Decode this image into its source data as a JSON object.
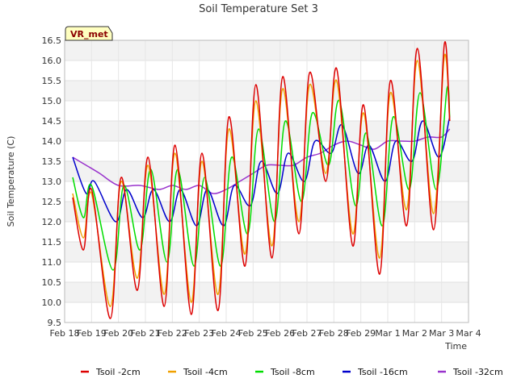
{
  "chart_data": {
    "type": "line",
    "title": "Soil Temperature Set 3",
    "xlabel": "Time",
    "ylabel": "Soil Temperature (C)",
    "badge": "VR_met",
    "x_unit": "day index (0 = Feb 18)",
    "xlim": [
      0,
      15
    ],
    "ylim": [
      9.5,
      16.5
    ],
    "y_ticks": [
      9.5,
      10.0,
      10.5,
      11.0,
      11.5,
      12.0,
      12.5,
      13.0,
      13.5,
      14.0,
      14.5,
      15.0,
      15.5,
      16.0,
      16.5
    ],
    "x_ticks": [
      {
        "value": 0,
        "label": "Feb 18"
      },
      {
        "value": 1,
        "label": "Feb 19"
      },
      {
        "value": 2,
        "label": "Feb 20"
      },
      {
        "value": 3,
        "label": "Feb 21"
      },
      {
        "value": 4,
        "label": "Feb 22"
      },
      {
        "value": 5,
        "label": "Feb 23"
      },
      {
        "value": 6,
        "label": "Feb 24"
      },
      {
        "value": 7,
        "label": "Feb 25"
      },
      {
        "value": 8,
        "label": "Feb 26"
      },
      {
        "value": 9,
        "label": "Feb 27"
      },
      {
        "value": 10,
        "label": "Feb 28"
      },
      {
        "value": 11,
        "label": "Feb 29"
      },
      {
        "value": 12,
        "label": "Mar 1"
      },
      {
        "value": 13,
        "label": "Mar 2"
      },
      {
        "value": 14,
        "label": "Mar 3"
      },
      {
        "value": 15,
        "label": "Mar 4"
      }
    ],
    "grid": true,
    "legend_position": "bottom",
    "series": [
      {
        "name": "Tsoil -2cm",
        "color": "#dd0000",
        "x": [
          0.3,
          0.7,
          1.0,
          1.7,
          2.1,
          2.7,
          3.1,
          3.7,
          4.1,
          4.7,
          5.1,
          5.7,
          6.1,
          6.7,
          7.1,
          7.7,
          8.1,
          8.7,
          9.1,
          9.7,
          10.1,
          10.7,
          11.1,
          11.7,
          12.1,
          12.7,
          13.1,
          13.7,
          14.1,
          14.3
        ],
        "y": [
          12.6,
          11.3,
          12.8,
          9.6,
          13.1,
          10.3,
          13.6,
          9.9,
          13.9,
          9.7,
          13.7,
          9.8,
          14.6,
          10.9,
          15.4,
          11.1,
          15.6,
          11.7,
          15.7,
          13.0,
          15.8,
          11.4,
          14.9,
          10.7,
          15.5,
          11.9,
          16.3,
          11.8,
          16.4,
          14.5
        ]
      },
      {
        "name": "Tsoil -4cm",
        "color": "#f0a000",
        "x": [
          0.3,
          0.7,
          1.0,
          1.7,
          2.1,
          2.7,
          3.1,
          3.7,
          4.1,
          4.7,
          5.1,
          5.7,
          6.1,
          6.7,
          7.1,
          7.7,
          8.1,
          8.7,
          9.1,
          9.7,
          10.1,
          10.7,
          11.1,
          11.7,
          12.1,
          12.7,
          13.1,
          13.7,
          14.1,
          14.3
        ],
        "y": [
          12.7,
          11.6,
          12.7,
          9.9,
          13.0,
          10.6,
          13.4,
          10.2,
          13.7,
          10.0,
          13.5,
          10.2,
          14.3,
          11.2,
          15.0,
          11.4,
          15.3,
          12.0,
          15.4,
          13.2,
          15.5,
          11.7,
          14.7,
          11.1,
          15.2,
          12.3,
          16.0,
          12.2,
          16.1,
          14.5
        ]
      },
      {
        "name": "Tsoil -8cm",
        "color": "#00dd00",
        "x": [
          0.3,
          0.7,
          1.0,
          1.8,
          2.2,
          2.8,
          3.2,
          3.8,
          4.2,
          4.8,
          5.2,
          5.8,
          6.2,
          6.8,
          7.2,
          7.8,
          8.2,
          8.8,
          9.2,
          9.8,
          10.2,
          10.8,
          11.2,
          11.8,
          12.2,
          12.8,
          13.2,
          13.8,
          14.2,
          14.3
        ],
        "y": [
          13.1,
          12.1,
          12.9,
          10.8,
          12.9,
          11.3,
          13.3,
          11.0,
          13.3,
          10.9,
          13.1,
          10.9,
          13.6,
          11.7,
          14.3,
          12.0,
          14.5,
          12.5,
          14.7,
          13.4,
          15.0,
          12.4,
          14.2,
          11.9,
          14.6,
          12.8,
          15.2,
          12.8,
          15.3,
          14.6
        ]
      },
      {
        "name": "Tsoil -16cm",
        "color": "#0000cc",
        "x": [
          0.3,
          0.8,
          1.1,
          1.9,
          2.3,
          2.9,
          3.3,
          3.9,
          4.3,
          4.9,
          5.3,
          5.9,
          6.3,
          6.9,
          7.3,
          7.9,
          8.3,
          8.9,
          9.3,
          9.9,
          10.3,
          10.9,
          11.3,
          11.9,
          12.3,
          12.9,
          13.3,
          13.9,
          14.3
        ],
        "y": [
          13.6,
          12.7,
          13.0,
          12.0,
          12.8,
          12.1,
          12.8,
          12.0,
          12.8,
          11.9,
          12.8,
          11.9,
          12.9,
          12.4,
          13.5,
          12.7,
          13.7,
          13.0,
          14.0,
          13.7,
          14.4,
          13.2,
          13.9,
          13.0,
          14.0,
          13.5,
          14.5,
          13.6,
          14.6
        ]
      },
      {
        "name": "Tsoil -32cm",
        "color": "#9933cc",
        "x": [
          0.3,
          0.8,
          1.3,
          2.0,
          2.8,
          3.5,
          4.0,
          4.5,
          5.0,
          5.5,
          6.0,
          6.5,
          7.0,
          7.5,
          8.0,
          8.5,
          9.0,
          9.5,
          10.0,
          10.5,
          11.0,
          11.5,
          12.0,
          12.5,
          13.0,
          13.5,
          14.0,
          14.3
        ],
        "y": [
          13.6,
          13.4,
          13.2,
          12.9,
          12.9,
          12.8,
          12.9,
          12.8,
          12.9,
          12.7,
          12.8,
          13.0,
          13.2,
          13.4,
          13.4,
          13.4,
          13.6,
          13.7,
          13.9,
          14.0,
          13.9,
          13.8,
          14.0,
          14.0,
          14.0,
          14.1,
          14.1,
          14.3
        ]
      }
    ]
  }
}
